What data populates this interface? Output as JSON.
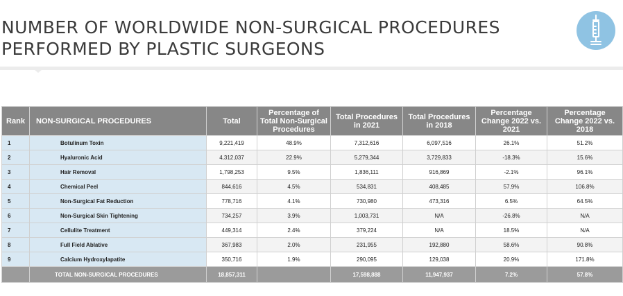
{
  "title_line1": "NUMBER OF WORLDWIDE NON-SURGICAL PROCEDURES",
  "title_line2": "PERFORMED BY PLASTIC SURGEONS",
  "colors": {
    "header": "#878787",
    "footer": "#9b9b9b",
    "procedure_cell": "#d8e8f3",
    "icon_circle": "#8fc3e3"
  },
  "icon": "syringe-icon",
  "headers": {
    "rank": "Rank",
    "procedure": "NON-SURGICAL PROCEDURES",
    "total": "Total",
    "percentage": "Percentage of Total Non-Surgical Procedures",
    "total_2021": "Total Procedures in 2021",
    "total_2018": "Total Procedures in 2018",
    "change_2021": "Percentage Change 2022 vs. 2021",
    "change_2018": "Percentage Change 2022 vs. 2018"
  },
  "rows": [
    {
      "rank": "1",
      "procedure": "Botulinum Toxin",
      "total": "9,221,419",
      "pct": "48.9%",
      "t2021": "7,312,616",
      "t2018": "6,097,516",
      "c2021": "26.1%",
      "c2018": "51.2%"
    },
    {
      "rank": "2",
      "procedure": "Hyaluronic Acid",
      "total": "4,312,037",
      "pct": "22.9%",
      "t2021": "5,279,344",
      "t2018": "3,729,833",
      "c2021": "-18.3%",
      "c2018": "15.6%"
    },
    {
      "rank": "3",
      "procedure": "Hair Removal",
      "total": "1,798,253",
      "pct": "9.5%",
      "t2021": "1,836,111",
      "t2018": "916,869",
      "c2021": "-2.1%",
      "c2018": "96.1%"
    },
    {
      "rank": "4",
      "procedure": "Chemical Peel",
      "total": "844,616",
      "pct": "4.5%",
      "t2021": "534,831",
      "t2018": "408,485",
      "c2021": "57.9%",
      "c2018": "106.8%"
    },
    {
      "rank": "5",
      "procedure": "Non-Surgical Fat Reduction",
      "total": "778,716",
      "pct": "4.1%",
      "t2021": "730,980",
      "t2018": "473,316",
      "c2021": "6.5%",
      "c2018": "64.5%"
    },
    {
      "rank": "6",
      "procedure": "Non-Surgical Skin Tightening",
      "total": "734,257",
      "pct": "3.9%",
      "t2021": "1,003,731",
      "t2018": "N/A",
      "c2021": "-26.8%",
      "c2018": "N/A"
    },
    {
      "rank": "7",
      "procedure": "Cellulite Treatment",
      "total": "449,314",
      "pct": "2.4%",
      "t2021": "379,224",
      "t2018": "N/A",
      "c2021": "18.5%",
      "c2018": "N/A"
    },
    {
      "rank": "8",
      "procedure": "Full Field Ablative",
      "total": "367,983",
      "pct": "2.0%",
      "t2021": "231,955",
      "t2018": "192,880",
      "c2021": "58.6%",
      "c2018": "90.8%"
    },
    {
      "rank": "9",
      "procedure": "Calcium Hydroxylapatite",
      "total": "350,716",
      "pct": "1.9%",
      "t2021": "290,095",
      "t2018": "129,038",
      "c2021": "20.9%",
      "c2018": "171.8%"
    }
  ],
  "footer": {
    "label": "TOTAL NON-SURGICAL PROCEDURES",
    "total": "18,857,311",
    "pct": "",
    "t2021": "17,598,888",
    "t2018": "11,947,937",
    "c2021": "7.2%",
    "c2018": "57.8%"
  }
}
